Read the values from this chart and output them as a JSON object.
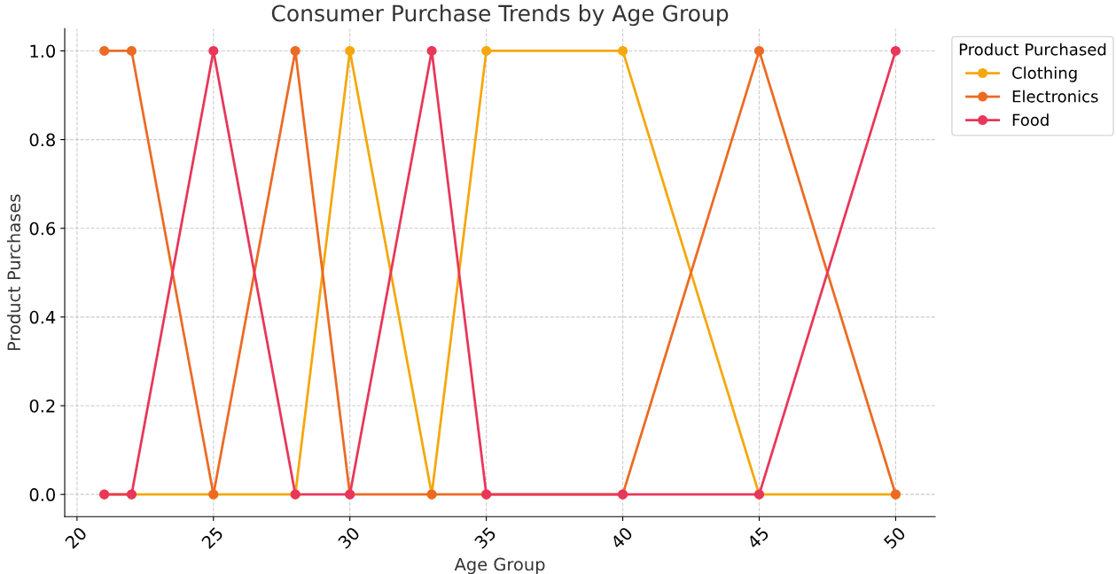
{
  "chart_data": {
    "type": "line",
    "title": "Consumer Purchase Trends by Age Group",
    "xlabel": "Age Group",
    "ylabel": "Product Purchases",
    "legend_title": "Product Purchased",
    "x": [
      21,
      22,
      25,
      28,
      30,
      33,
      35,
      40,
      45,
      50
    ],
    "series": [
      {
        "name": "Clothing",
        "color": "#f4a80c",
        "values": [
          0,
          0,
          0,
          0,
          1,
          0,
          1,
          1,
          0,
          0
        ]
      },
      {
        "name": "Electronics",
        "color": "#ec6b24",
        "values": [
          1,
          1,
          0,
          1,
          0,
          0,
          0,
          0,
          1,
          0
        ]
      },
      {
        "name": "Food",
        "color": "#e8375a",
        "values": [
          0,
          0,
          1,
          0,
          0,
          1,
          0,
          0,
          0,
          1
        ]
      }
    ],
    "xlim": [
      19.55,
      51.45
    ],
    "xticks": [
      20,
      25,
      30,
      35,
      40,
      45,
      50
    ],
    "ylim": [
      -0.05,
      1.05
    ],
    "yticks": [
      {
        "value": 0,
        "label": "0.0"
      },
      {
        "value": 0.2,
        "label": "0.2"
      },
      {
        "value": 0.4,
        "label": "0.4"
      },
      {
        "value": 0.6,
        "label": "0.6"
      },
      {
        "value": 0.8,
        "label": "0.8"
      },
      {
        "value": 1,
        "label": "1.0"
      }
    ],
    "grid": true,
    "legend": "top right",
    "marker": "circle",
    "line_style": "solid"
  }
}
